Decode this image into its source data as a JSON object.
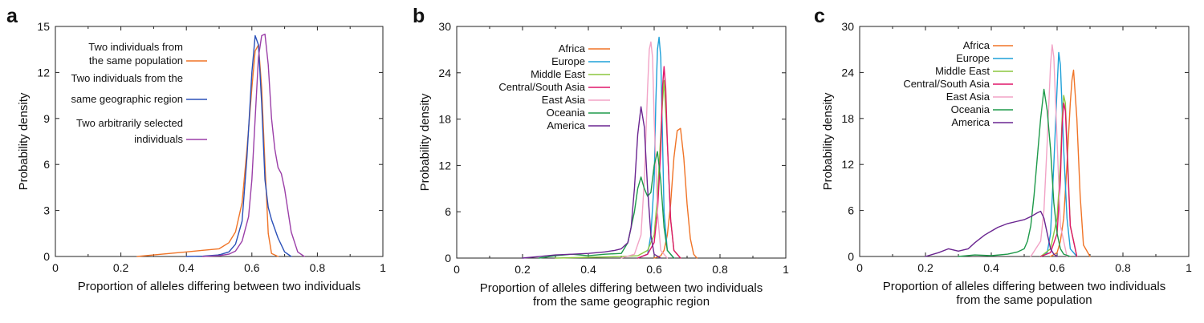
{
  "colors": {
    "orange": "#f07427",
    "blue": "#2a50b8",
    "purple": "#9b3fa8",
    "cyan": "#1ea0d8",
    "lightgreen": "#8cc63f",
    "crimson": "#e0176a",
    "pink": "#f2a3c6",
    "green": "#1e9a4a",
    "violet": "#6a2590"
  },
  "chart_data": [
    {
      "panel": "a",
      "type": "line",
      "xlabel": "Proportion of alleles differing between two individuals",
      "ylabel": "Probability density",
      "xlim": [
        0,
        1
      ],
      "ylim": [
        0,
        15
      ],
      "xticks": [
        "0",
        "0.2",
        "0.4",
        "0.6",
        "0.8",
        "1"
      ],
      "yticks": [
        "0",
        "3",
        "6",
        "9",
        "12",
        "15"
      ],
      "legend_position": "top-left",
      "series": [
        {
          "name": [
            "Two individuals from",
            "the same population"
          ],
          "color": "#f07427",
          "x": [
            0.25,
            0.3,
            0.35,
            0.4,
            0.45,
            0.5,
            0.53,
            0.55,
            0.57,
            0.585,
            0.6,
            0.61,
            0.62,
            0.63,
            0.64,
            0.65,
            0.66,
            0.68
          ],
          "y": [
            0,
            0.1,
            0.2,
            0.3,
            0.4,
            0.5,
            0.9,
            1.6,
            3.5,
            7,
            11,
            13.4,
            13.8,
            11,
            6,
            1.5,
            0.2,
            0
          ]
        },
        {
          "name": [
            "Two individuals from the",
            "same geographic region"
          ],
          "color": "#2a50b8",
          "x": [
            0.4,
            0.45,
            0.5,
            0.53,
            0.55,
            0.57,
            0.585,
            0.6,
            0.61,
            0.62,
            0.63,
            0.64,
            0.65,
            0.66,
            0.68,
            0.7,
            0.72
          ],
          "y": [
            0,
            0.02,
            0.1,
            0.3,
            0.8,
            2.3,
            6.5,
            12,
            14.4,
            13.8,
            10,
            5,
            3.2,
            2.4,
            1.2,
            0.3,
            0
          ]
        },
        {
          "name": [
            "Two arbitrarily selected",
            "individuals"
          ],
          "color": "#9b3fa8",
          "x": [
            0.45,
            0.5,
            0.53,
            0.55,
            0.57,
            0.59,
            0.6,
            0.61,
            0.62,
            0.63,
            0.64,
            0.65,
            0.66,
            0.67,
            0.68,
            0.69,
            0.7,
            0.71,
            0.72,
            0.74,
            0.76
          ],
          "y": [
            0,
            0.05,
            0.15,
            0.35,
            1.0,
            2.6,
            5,
            9,
            13,
            14.4,
            14.5,
            12.5,
            9,
            7,
            5.8,
            5.4,
            4.4,
            3,
            1.6,
            0.3,
            0
          ]
        }
      ]
    },
    {
      "panel": "b",
      "type": "line",
      "xlabel": [
        "Proportion of alleles differing between two individuals",
        "from the same geographic region"
      ],
      "ylabel": "Probability density",
      "xlim": [
        0,
        1
      ],
      "ylim": [
        0,
        30
      ],
      "xticks": [
        "0",
        "0.2",
        "0.4",
        "0.6",
        "0.8",
        "1"
      ],
      "yticks": [
        "0",
        "6",
        "12",
        "18",
        "24",
        "30"
      ],
      "legend_position": "top-left",
      "series": [
        {
          "name": "Africa",
          "color": "#f07427",
          "x": [
            0.6,
            0.62,
            0.63,
            0.64,
            0.65,
            0.66,
            0.67,
            0.68,
            0.69,
            0.7,
            0.71,
            0.72,
            0.73
          ],
          "y": [
            0,
            0.3,
            1,
            3,
            7,
            13,
            16.5,
            16.8,
            13,
            7,
            2.5,
            0.5,
            0
          ]
        },
        {
          "name": "Europe",
          "color": "#1ea0d8",
          "x": [
            0.55,
            0.58,
            0.59,
            0.6,
            0.605,
            0.61,
            0.615,
            0.62,
            0.625,
            0.63,
            0.64,
            0.66
          ],
          "y": [
            0,
            0.5,
            3,
            10,
            20,
            27,
            28.6,
            26,
            16,
            6,
            1,
            0
          ]
        },
        {
          "name": "Middle East",
          "color": "#8cc63f",
          "x": [
            0.3,
            0.4,
            0.5,
            0.55,
            0.58,
            0.6,
            0.61,
            0.62,
            0.625,
            0.63,
            0.64,
            0.65,
            0.66,
            0.68
          ],
          "y": [
            0,
            0.1,
            0.2,
            0.3,
            1,
            3,
            8,
            16,
            20,
            23,
            15,
            5,
            1,
            0
          ]
        },
        {
          "name": "Central/South Asia",
          "color": "#e0176a",
          "x": [
            0.55,
            0.58,
            0.6,
            0.61,
            0.62,
            0.625,
            0.63,
            0.635,
            0.64,
            0.65,
            0.66,
            0.68
          ],
          "y": [
            0,
            0.5,
            2,
            6,
            14,
            22,
            24.8,
            22,
            15,
            5,
            1,
            0
          ]
        },
        {
          "name": "East Asia",
          "color": "#f2a3c6",
          "x": [
            0.5,
            0.54,
            0.56,
            0.57,
            0.58,
            0.585,
            0.59,
            0.595,
            0.6,
            0.61,
            0.62,
            0.64
          ],
          "y": [
            0,
            0.5,
            3,
            10,
            22,
            27,
            28,
            26,
            18,
            6,
            1,
            0
          ]
        },
        {
          "name": "Oceania",
          "color": "#1e9a4a",
          "x": [
            0.25,
            0.3,
            0.35,
            0.4,
            0.45,
            0.5,
            0.52,
            0.54,
            0.55,
            0.56,
            0.57,
            0.58,
            0.59,
            0.6,
            0.61,
            0.62,
            0.63,
            0.64,
            0.66
          ],
          "y": [
            0,
            0.3,
            0.5,
            0.3,
            0.5,
            0.6,
            2,
            6,
            9,
            10.5,
            9,
            8,
            8.5,
            12,
            13.8,
            10,
            4,
            1,
            0
          ]
        },
        {
          "name": "America",
          "color": "#6a2590",
          "x": [
            0.2,
            0.25,
            0.3,
            0.35,
            0.4,
            0.45,
            0.48,
            0.5,
            0.52,
            0.53,
            0.54,
            0.55,
            0.56,
            0.57,
            0.58,
            0.59,
            0.6,
            0.62
          ],
          "y": [
            0,
            0.2,
            0.4,
            0.5,
            0.6,
            0.8,
            1,
            1.2,
            2,
            4,
            9,
            16,
            19.6,
            17,
            9,
            3,
            0.5,
            0
          ]
        }
      ]
    },
    {
      "panel": "c",
      "type": "line",
      "xlabel": [
        "Proportion of alleles differing between two individuals",
        "from the same population"
      ],
      "ylabel": "Probability density",
      "xlim": [
        0,
        1
      ],
      "ylim": [
        0,
        30
      ],
      "xticks": [
        "0",
        "0.2",
        "0.4",
        "0.6",
        "0.8",
        "1"
      ],
      "yticks": [
        "0",
        "6",
        "12",
        "18",
        "24",
        "30"
      ],
      "legend_position": "top-left",
      "series": [
        {
          "name": "Africa",
          "color": "#f07427",
          "x": [
            0.58,
            0.6,
            0.61,
            0.62,
            0.63,
            0.64,
            0.645,
            0.65,
            0.66,
            0.67,
            0.68,
            0.7
          ],
          "y": [
            0,
            0.5,
            2,
            5,
            12,
            20,
            23,
            24.3,
            18,
            8,
            1.5,
            0
          ]
        },
        {
          "name": "Europe",
          "color": "#1ea0d8",
          "x": [
            0.55,
            0.57,
            0.58,
            0.59,
            0.6,
            0.605,
            0.61,
            0.62,
            0.63,
            0.64,
            0.66
          ],
          "y": [
            0,
            0.5,
            3,
            12,
            22,
            26.6,
            25,
            14,
            5,
            1,
            0
          ]
        },
        {
          "name": "Middle East",
          "color": "#8cc63f",
          "x": [
            0.55,
            0.58,
            0.6,
            0.61,
            0.615,
            0.62,
            0.625,
            0.63,
            0.64,
            0.66
          ],
          "y": [
            0,
            1,
            5,
            12,
            18,
            21,
            20,
            15,
            4,
            0
          ]
        },
        {
          "name": "Central/South Asia",
          "color": "#e0176a",
          "x": [
            0.55,
            0.58,
            0.6,
            0.61,
            0.615,
            0.62,
            0.625,
            0.63,
            0.64,
            0.66
          ],
          "y": [
            0,
            0.5,
            3,
            10,
            17,
            20,
            19,
            14,
            4,
            0
          ]
        },
        {
          "name": "East Asia",
          "color": "#f2a3c6",
          "x": [
            0.52,
            0.55,
            0.56,
            0.57,
            0.58,
            0.585,
            0.59,
            0.6,
            0.61,
            0.63
          ],
          "y": [
            0,
            2,
            6,
            15,
            25,
            27.6,
            26,
            15,
            4,
            0
          ]
        },
        {
          "name": "Oceania",
          "color": "#1e9a4a",
          "x": [
            0.3,
            0.35,
            0.4,
            0.45,
            0.48,
            0.5,
            0.51,
            0.52,
            0.53,
            0.54,
            0.55,
            0.56,
            0.57,
            0.58,
            0.59,
            0.6,
            0.61,
            0.62,
            0.64
          ],
          "y": [
            0,
            0.2,
            0.1,
            0.3,
            0.6,
            1,
            2,
            4,
            8,
            13,
            18,
            21.8,
            19,
            14,
            7,
            3,
            1,
            0.3,
            0
          ]
        },
        {
          "name": "America",
          "color": "#6a2590",
          "x": [
            0.2,
            0.24,
            0.27,
            0.3,
            0.33,
            0.35,
            0.38,
            0.4,
            0.42,
            0.45,
            0.48,
            0.5,
            0.52,
            0.54,
            0.55,
            0.56,
            0.57,
            0.58,
            0.59,
            0.6
          ],
          "y": [
            0,
            0.5,
            1,
            0.7,
            1,
            1.8,
            2.8,
            3.3,
            3.8,
            4.3,
            4.6,
            4.8,
            5.2,
            5.7,
            5.9,
            5,
            3,
            1,
            0.3,
            0
          ]
        }
      ]
    }
  ]
}
